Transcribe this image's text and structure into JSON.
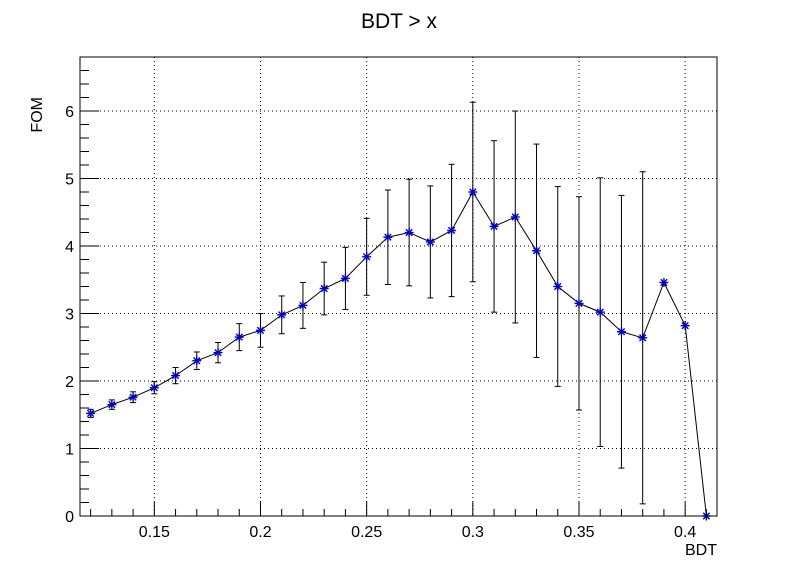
{
  "chart_data": {
    "type": "scatter",
    "title": "BDT > x",
    "xlabel": "BDT",
    "ylabel": "FOM",
    "xlim": [
      0.115,
      0.415
    ],
    "ylim": [
      0,
      6.8
    ],
    "grid": true,
    "x_ticks": [
      0.15,
      0.2,
      0.25,
      0.3,
      0.35,
      0.4
    ],
    "x_tick_labels": [
      "0.15",
      "0.2",
      "0.25",
      "0.3",
      "0.35",
      "0.4"
    ],
    "y_ticks": [
      0,
      1,
      2,
      3,
      4,
      5,
      6
    ],
    "y_tick_labels": [
      "0",
      "1",
      "2",
      "3",
      "4",
      "5",
      "6"
    ],
    "series": [
      {
        "marker_color": "#0000cc",
        "line_color": "#000000",
        "points": [
          {
            "x": 0.12,
            "y": 1.52,
            "err": 0.06
          },
          {
            "x": 0.13,
            "y": 1.65,
            "err": 0.07
          },
          {
            "x": 0.14,
            "y": 1.76,
            "err": 0.08
          },
          {
            "x": 0.15,
            "y": 1.9,
            "err": 0.09
          },
          {
            "x": 0.16,
            "y": 2.08,
            "err": 0.12
          },
          {
            "x": 0.17,
            "y": 2.3,
            "err": 0.13
          },
          {
            "x": 0.18,
            "y": 2.42,
            "err": 0.15
          },
          {
            "x": 0.19,
            "y": 2.65,
            "err": 0.2
          },
          {
            "x": 0.2,
            "y": 2.75,
            "err": 0.25
          },
          {
            "x": 0.21,
            "y": 2.98,
            "err": 0.28
          },
          {
            "x": 0.22,
            "y": 3.12,
            "err": 0.34
          },
          {
            "x": 0.23,
            "y": 3.37,
            "err": 0.39
          },
          {
            "x": 0.24,
            "y": 3.52,
            "err": 0.46
          },
          {
            "x": 0.25,
            "y": 3.84,
            "err": 0.57
          },
          {
            "x": 0.26,
            "y": 4.13,
            "err": 0.7
          },
          {
            "x": 0.27,
            "y": 4.2,
            "err": 0.79
          },
          {
            "x": 0.28,
            "y": 4.06,
            "err": 0.83
          },
          {
            "x": 0.29,
            "y": 4.23,
            "err": 0.98
          },
          {
            "x": 0.3,
            "y": 4.8,
            "err": 1.33
          },
          {
            "x": 0.31,
            "y": 4.29,
            "err": 1.27
          },
          {
            "x": 0.32,
            "y": 4.43,
            "err": 1.57
          },
          {
            "x": 0.33,
            "y": 3.93,
            "err": 1.58
          },
          {
            "x": 0.34,
            "y": 3.4,
            "err": 1.48
          },
          {
            "x": 0.35,
            "y": 3.15,
            "err": 1.58
          },
          {
            "x": 0.36,
            "y": 3.02,
            "err": 1.99
          },
          {
            "x": 0.37,
            "y": 2.73,
            "err": 2.02
          },
          {
            "x": 0.38,
            "y": 2.64,
            "err": 2.46
          },
          {
            "x": 0.39,
            "y": 3.46,
            "err": 0.0
          },
          {
            "x": 0.4,
            "y": 2.82,
            "err": 0.0
          },
          {
            "x": 0.41,
            "y": 0.0,
            "err": 0.0
          }
        ]
      }
    ]
  }
}
